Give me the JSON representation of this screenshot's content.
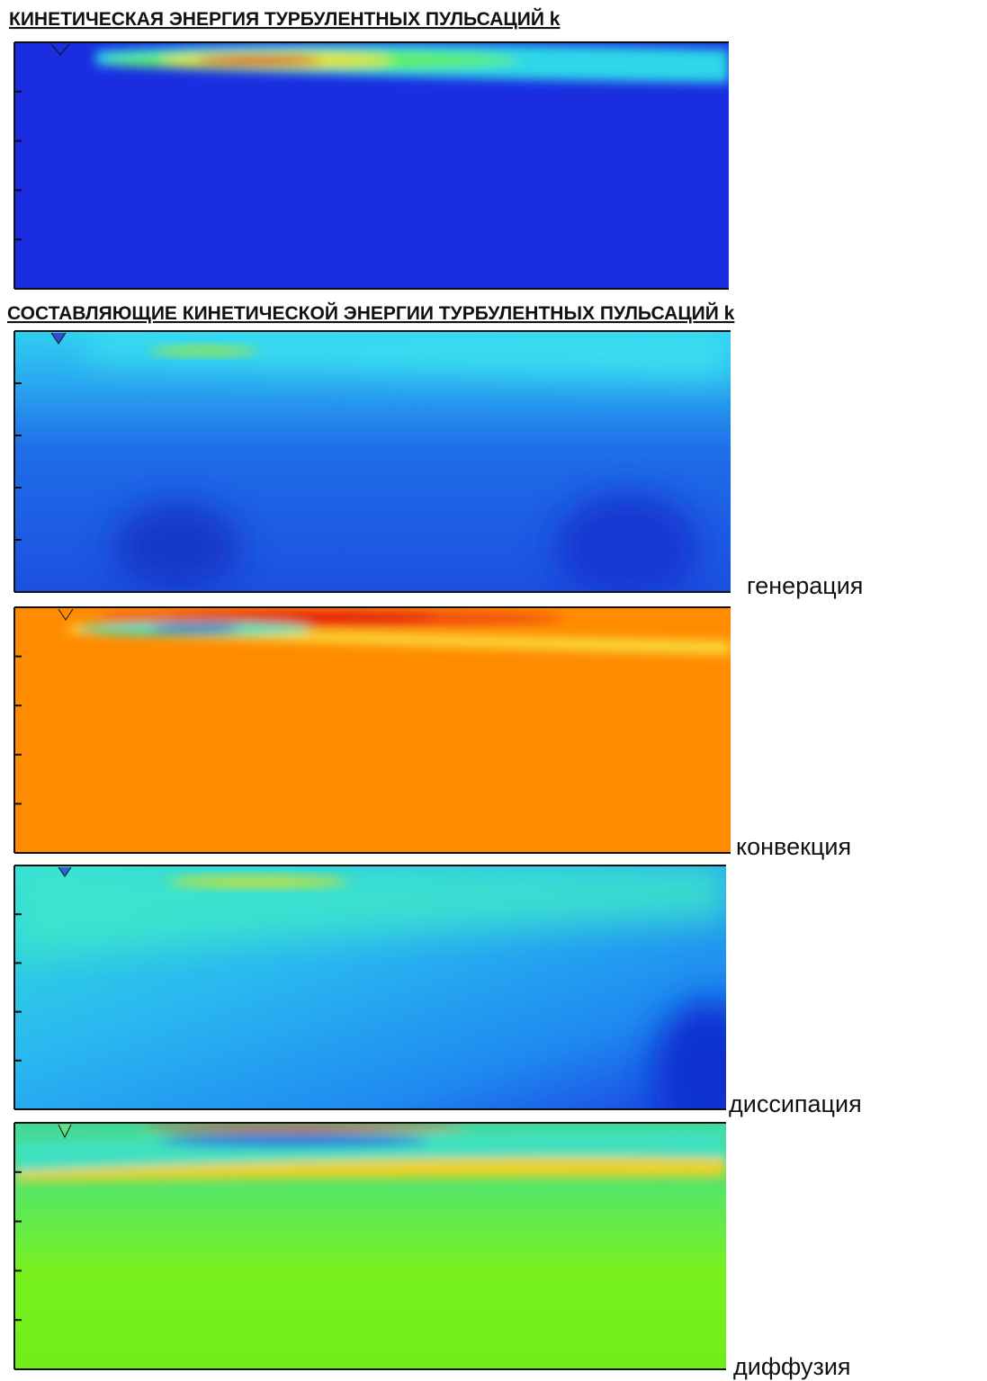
{
  "title": "КИНЕТИЧЕСКАЯ ЭНЕРГИЯ ТУРБУЛЕНТНЫХ ПУЛЬСАЦИЙ k",
  "subtitle": "СОСТАВЛЯЮЩИЕ КИНЕТИЧЕСКОЙ ЭНЕРГИИ ТУРБУЛЕНТНЫХ ПУЛЬСАЦИЙ k",
  "panels": [
    {
      "label": "генерация"
    },
    {
      "label": "конвекция"
    },
    {
      "label": "диссипация"
    },
    {
      "label": "диффузия"
    }
  ]
}
